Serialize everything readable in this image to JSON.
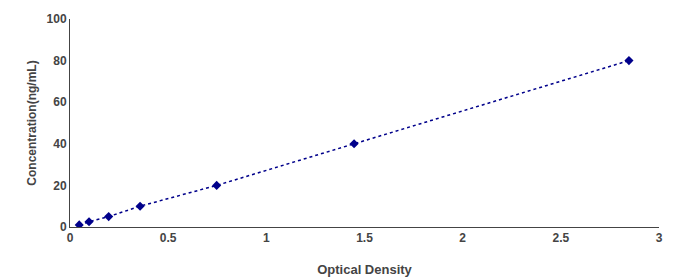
{
  "chart_data": {
    "type": "line",
    "x": [
      0.047,
      0.097,
      0.197,
      0.357,
      0.747,
      1.447,
      2.847
    ],
    "values": [
      1.0,
      2.5,
      5.0,
      10.0,
      20.0,
      40.0,
      80.0
    ],
    "color": "#00008B",
    "marker": "diamond",
    "line_style": "dotted",
    "xlabel": "Optical Density",
    "ylabel": "Concentration(ng/mL)",
    "xlim": [
      0,
      3.0
    ],
    "ylim": [
      0,
      100
    ],
    "xticks": [
      0,
      0.5,
      1,
      1.5,
      2,
      2.5,
      3
    ],
    "yticks": [
      0,
      20,
      40,
      60,
      80,
      100
    ],
    "grid": false
  }
}
